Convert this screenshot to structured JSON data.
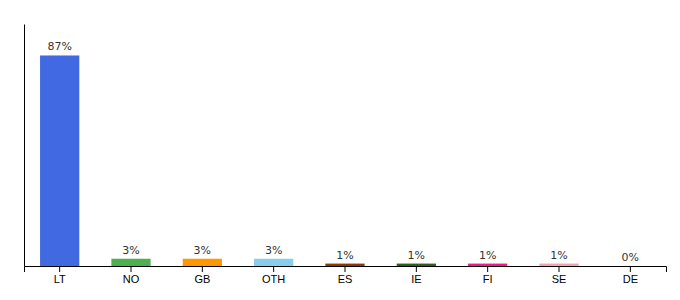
{
  "chart_data": {
    "type": "bar",
    "categories": [
      "LT",
      "NO",
      "GB",
      "OTH",
      "ES",
      "IE",
      "FI",
      "SE",
      "DE"
    ],
    "values": [
      87,
      3,
      3,
      3,
      1,
      1,
      1,
      1,
      0
    ],
    "value_labels": [
      "87%",
      "3%",
      "3%",
      "3%",
      "1%",
      "1%",
      "1%",
      "1%",
      "0%"
    ],
    "colors": [
      "#4169e1",
      "#4caf50",
      "#ff9800",
      "#87ceeb",
      "#8b3a00",
      "#2e5e1e",
      "#e91e8c",
      "#f4a0b5",
      "#4169e1"
    ],
    "ylim": [
      0,
      100
    ],
    "data_labels": true,
    "tick_labels": "x",
    "grid": false
  }
}
